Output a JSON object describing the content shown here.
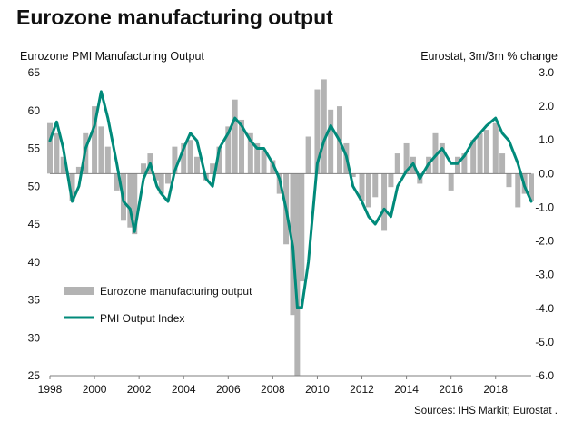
{
  "title": "Eurozone manufacturing output",
  "left_axis_label": "Eurozone PMI Manufacturing Output",
  "right_axis_label": "Eurostat, 3m/3m % change",
  "source": "Sources: IHS Markit; Eurostat .",
  "colors": {
    "bars": "#b3b3b3",
    "line": "#008a7a",
    "axis": "#7f7f7f"
  },
  "chart_data": {
    "type": "bar+line",
    "x_range": [
      1998,
      2019.6
    ],
    "x_ticks": [
      "1998",
      "2000",
      "2002",
      "2004",
      "2006",
      "2008",
      "2010",
      "2012",
      "2014",
      "2016",
      "2018"
    ],
    "left_axis": {
      "range": [
        25,
        65
      ],
      "ticks": [
        "65",
        "60",
        "55",
        "50",
        "45",
        "40",
        "35",
        "30",
        "25"
      ],
      "series": "PMI Output Index"
    },
    "right_axis": {
      "range": [
        -6.0,
        3.0
      ],
      "ticks": [
        "3.0",
        "2.0",
        "1.0",
        "0.0",
        "-1.0",
        "-2.0",
        "-3.0",
        "-4.0",
        "-5.0",
        "-6.0"
      ],
      "series": "Eurozone manufacturing output"
    },
    "legend": [
      "Eurozone manufacturing output",
      "PMI Output Index"
    ],
    "legend_placement": "bottom-left",
    "series": [
      {
        "name": "PMI Output Index",
        "kind": "line",
        "axis": "left",
        "x": [
          1998.0,
          1998.3,
          1998.6,
          1999.0,
          1999.3,
          1999.6,
          2000.0,
          2000.3,
          2000.6,
          2001.0,
          2001.3,
          2001.6,
          2001.8,
          2002.2,
          2002.5,
          2002.8,
          2003.0,
          2003.3,
          2003.6,
          2004.0,
          2004.3,
          2004.6,
          2005.0,
          2005.3,
          2005.6,
          2006.0,
          2006.3,
          2006.6,
          2007.0,
          2007.3,
          2007.6,
          2008.0,
          2008.3,
          2008.6,
          2008.9,
          2009.1,
          2009.3,
          2009.6,
          2010.0,
          2010.3,
          2010.6,
          2011.0,
          2011.3,
          2011.6,
          2012.0,
          2012.3,
          2012.6,
          2013.0,
          2013.3,
          2013.6,
          2014.0,
          2014.3,
          2014.6,
          2015.0,
          2015.3,
          2015.6,
          2016.0,
          2016.3,
          2016.6,
          2017.0,
          2017.3,
          2017.6,
          2018.0,
          2018.3,
          2018.6,
          2019.0,
          2019.3,
          2019.6
        ],
        "values": [
          56,
          58.5,
          55,
          48,
          50,
          55,
          58,
          62.5,
          59,
          53,
          48,
          47,
          44,
          51,
          53,
          50,
          49,
          48,
          52,
          55,
          57,
          56,
          51,
          50,
          55,
          57,
          59,
          58,
          56,
          55,
          55,
          53,
          51,
          47,
          42,
          34,
          34,
          40,
          53,
          56,
          58,
          56,
          54,
          50,
          48,
          46,
          45,
          47,
          46,
          50,
          52,
          53,
          51,
          53,
          54,
          55,
          53,
          53,
          54,
          56,
          57,
          58,
          59,
          57,
          56,
          53,
          50,
          48
        ]
      },
      {
        "name": "Eurozone manufacturing output",
        "kind": "bar",
        "axis": "right",
        "x": [
          1998.0,
          1998.3,
          1998.6,
          1999.0,
          1999.3,
          1999.6,
          2000.0,
          2000.3,
          2000.6,
          2001.0,
          2001.3,
          2001.6,
          2001.8,
          2002.2,
          2002.5,
          2002.8,
          2003.0,
          2003.3,
          2003.6,
          2004.0,
          2004.3,
          2004.6,
          2005.0,
          2005.3,
          2005.6,
          2006.0,
          2006.3,
          2006.6,
          2007.0,
          2007.3,
          2007.6,
          2008.0,
          2008.3,
          2008.6,
          2008.9,
          2009.1,
          2009.3,
          2009.6,
          2010.0,
          2010.3,
          2010.6,
          2011.0,
          2011.3,
          2011.6,
          2012.0,
          2012.3,
          2012.6,
          2013.0,
          2013.3,
          2013.6,
          2014.0,
          2014.3,
          2014.6,
          2015.0,
          2015.3,
          2015.6,
          2016.0,
          2016.3,
          2016.6,
          2017.0,
          2017.3,
          2017.6,
          2018.0,
          2018.3,
          2018.6,
          2019.0,
          2019.3,
          2019.6
        ],
        "values": [
          1.5,
          1.2,
          0.5,
          -0.8,
          0.2,
          1.2,
          2.0,
          1.4,
          0.8,
          -0.5,
          -1.4,
          -1.6,
          -1.8,
          0.3,
          0.6,
          -0.2,
          -0.6,
          -0.3,
          0.8,
          0.9,
          1.0,
          0.5,
          -0.2,
          0.3,
          0.8,
          1.4,
          2.2,
          1.6,
          1.2,
          0.9,
          0.7,
          0.4,
          -0.6,
          -2.1,
          -4.2,
          -6.0,
          -3.2,
          1.1,
          2.5,
          2.8,
          1.9,
          2.0,
          0.9,
          -0.1,
          -0.8,
          -1.0,
          -0.7,
          -1.7,
          -0.4,
          0.6,
          0.9,
          0.5,
          -0.3,
          0.5,
          1.2,
          0.9,
          -0.5,
          0.5,
          0.6,
          1.0,
          1.2,
          1.3,
          1.5,
          0.6,
          -0.4,
          -1.0,
          -0.6,
          -0.8
        ]
      }
    ]
  }
}
